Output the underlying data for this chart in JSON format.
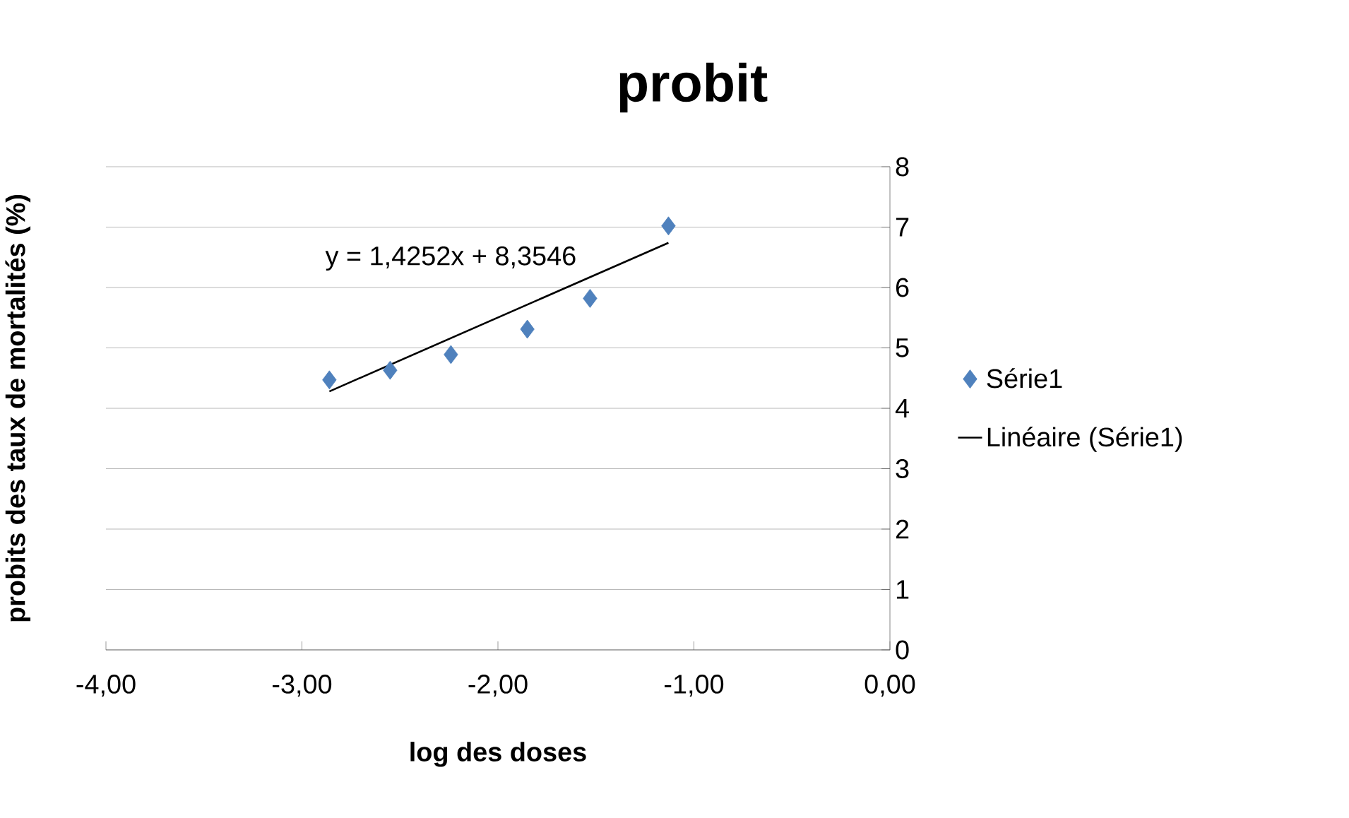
{
  "chart_data": {
    "type": "scatter",
    "title": "probit",
    "xlabel": "log des doses",
    "ylabel": "probits des taux de mortalités (%)",
    "xlim": [
      -4,
      0
    ],
    "ylim": [
      0,
      8
    ],
    "xticks": [
      {
        "value": -4,
        "label": "-4,00"
      },
      {
        "value": -3,
        "label": "-3,00"
      },
      {
        "value": -2,
        "label": "-2,00"
      },
      {
        "value": -1,
        "label": "-1,00"
      },
      {
        "value": 0,
        "label": "0,00"
      }
    ],
    "yticks": [
      0,
      1,
      2,
      3,
      4,
      5,
      6,
      7,
      8
    ],
    "grid": "y",
    "legend": "right",
    "series": [
      {
        "name": "Série1",
        "marker": "diamond",
        "color": "#4f81bd",
        "x": [
          -2.86,
          -2.55,
          -2.24,
          -1.85,
          -1.53,
          -1.13
        ],
        "values": [
          4.47,
          4.63,
          4.89,
          5.31,
          5.82,
          7.02
        ]
      },
      {
        "name": "Linéaire (Série1)",
        "type": "line",
        "color": "#000000",
        "x": [
          -2.86,
          -1.13
        ],
        "values": [
          4.28,
          6.74
        ]
      }
    ],
    "annotations": [
      "y = 1,4252x + 8,3546"
    ]
  }
}
